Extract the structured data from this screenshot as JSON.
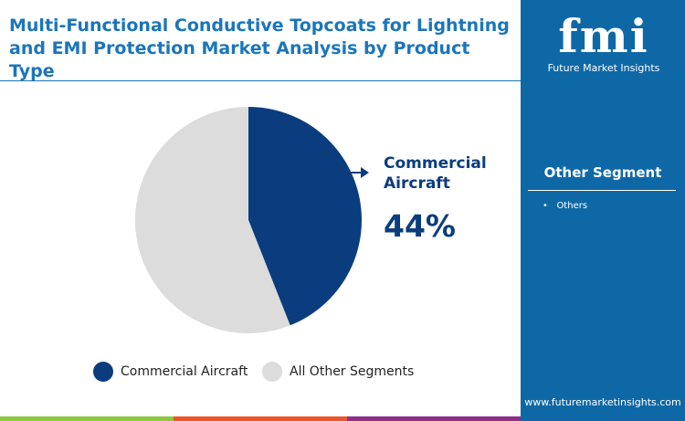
{
  "title": "Multi-Functional Conductive Topcoats for Lightning and EMI Protection Market  Analysis by Product Type",
  "sidebar": {
    "logo_text": "fmi",
    "logo_sub": "Future Market Insights",
    "segment_title": "Other Segment",
    "segment_items": [
      "Others"
    ],
    "url": "www.futuremarketinsights.com"
  },
  "chart_data": {
    "type": "pie",
    "categories": [
      "Commercial Aircraft",
      "All Other Segments"
    ],
    "values": [
      44,
      56
    ],
    "colors": [
      "#0b3d7e",
      "#dcdcdc"
    ],
    "callout": {
      "label": "Commercial Aircraft",
      "value": "44%"
    },
    "legend": "bottom"
  },
  "colors": {
    "accent": "#1b75bb",
    "sidebar": "#0f68a6",
    "bottom_bars": [
      "#8dc63f",
      "#e8592a",
      "#8e2e8c",
      "#0f68a6"
    ]
  }
}
